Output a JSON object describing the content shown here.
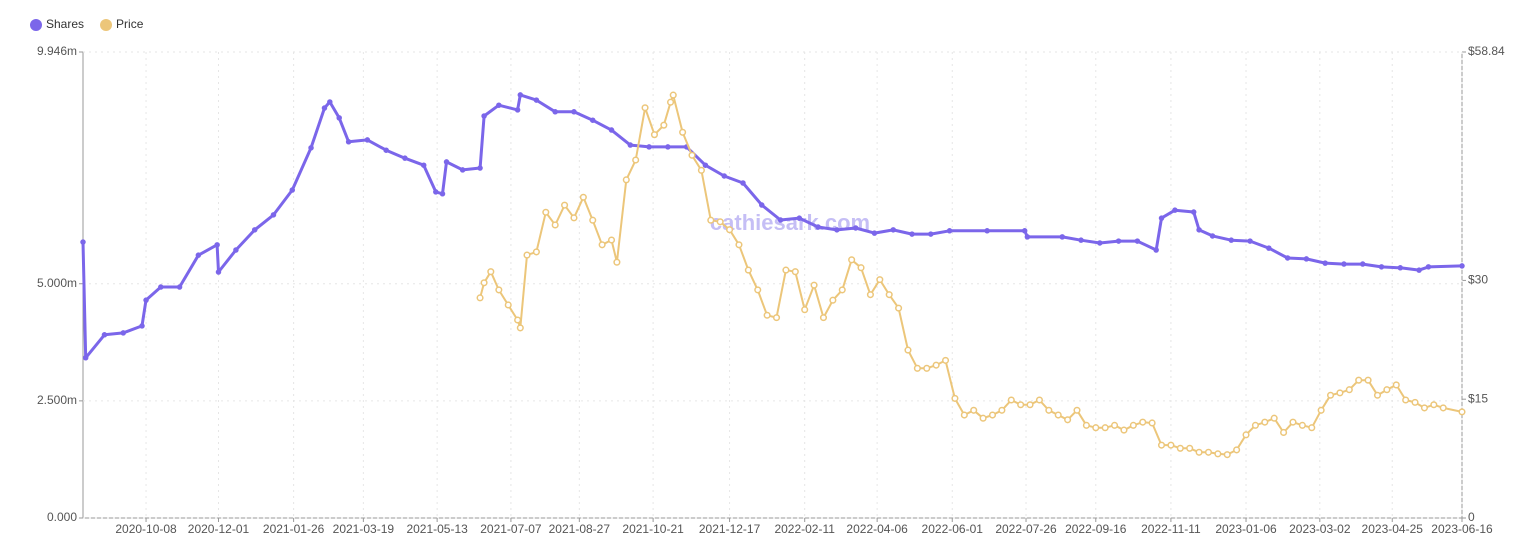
{
  "chart_data": {
    "type": "line",
    "watermark": "cathiesark.com",
    "legend": "top-left",
    "grid": true,
    "xlim": [
      "2020-08-22",
      "2023-06-16"
    ],
    "xticks": [
      "2020-10-08",
      "2020-12-01",
      "2021-01-26",
      "2021-03-19",
      "2021-05-13",
      "2021-07-07",
      "2021-08-27",
      "2021-10-21",
      "2021-12-17",
      "2022-02-11",
      "2022-04-06",
      "2022-06-01",
      "2022-07-26",
      "2022-09-16",
      "2022-11-11",
      "2023-01-06",
      "2023-03-02",
      "2023-04-25",
      "2023-06-16"
    ],
    "ylim": [
      0,
      9.946
    ],
    "yticks": [
      {
        "value": 0,
        "label": "0.000"
      },
      {
        "value": 2.5,
        "label": "2.500m"
      },
      {
        "value": 5,
        "label": "5.000m"
      },
      {
        "value": 9.946,
        "label": "9.946m"
      }
    ],
    "y2lim": [
      0,
      58.84
    ],
    "y2ticks": [
      0,
      {
        "value": 15,
        "label": "$15"
      },
      {
        "value": 30,
        "label": "$30"
      },
      {
        "value": 58.84,
        "label": "$58.84"
      }
    ],
    "series": [
      {
        "name": "Shares",
        "color": "#7b66ea",
        "x": [
          "2020-08-22",
          "2020-08-24",
          "2020-09-07",
          "2020-09-21",
          "2020-10-05",
          "2020-10-08",
          "2020-10-19",
          "2020-11-02",
          "2020-11-16",
          "2020-11-30",
          "2020-12-01",
          "2020-12-14",
          "2020-12-28",
          "2021-01-11",
          "2021-01-25",
          "2021-02-08",
          "2021-02-18",
          "2021-02-22",
          "2021-03-01",
          "2021-03-08",
          "2021-03-22",
          "2021-04-05",
          "2021-04-19",
          "2021-05-03",
          "2021-05-12",
          "2021-05-17",
          "2021-05-20",
          "2021-06-01",
          "2021-06-14",
          "2021-06-17",
          "2021-06-28",
          "2021-07-12",
          "2021-07-14",
          "2021-07-26",
          "2021-08-09",
          "2021-08-23",
          "2021-09-06",
          "2021-09-20",
          "2021-10-04",
          "2021-10-18",
          "2021-11-01",
          "2021-11-15",
          "2021-11-29",
          "2021-12-13",
          "2021-12-27",
          "2022-01-10",
          "2022-01-24",
          "2022-02-07",
          "2022-02-21",
          "2022-03-07",
          "2022-03-21",
          "2022-04-04",
          "2022-04-18",
          "2022-05-02",
          "2022-05-16",
          "2022-05-30",
          "2022-06-27",
          "2022-07-25",
          "2022-07-27",
          "2022-08-22",
          "2022-09-05",
          "2022-09-19",
          "2022-10-03",
          "2022-10-17",
          "2022-10-31",
          "2022-11-04",
          "2022-11-14",
          "2022-11-28",
          "2022-12-02",
          "2022-12-12",
          "2022-12-26",
          "2023-01-09",
          "2023-01-23",
          "2023-02-06",
          "2023-02-20",
          "2023-03-06",
          "2023-03-20",
          "2023-04-03",
          "2023-04-17",
          "2023-05-01",
          "2023-05-15",
          "2023-05-22",
          "2023-06-16"
        ],
        "values": [
          5.89,
          3.42,
          3.91,
          3.95,
          4.1,
          4.65,
          4.93,
          4.93,
          5.61,
          5.83,
          5.25,
          5.72,
          6.15,
          6.47,
          7.0,
          7.9,
          8.75,
          8.88,
          8.54,
          8.03,
          8.07,
          7.85,
          7.68,
          7.53,
          6.96,
          6.92,
          7.6,
          7.43,
          7.47,
          8.58,
          8.81,
          8.71,
          9.03,
          8.92,
          8.67,
          8.67,
          8.49,
          8.28,
          7.96,
          7.92,
          7.92,
          7.92,
          7.53,
          7.3,
          7.15,
          6.68,
          6.36,
          6.4,
          6.21,
          6.15,
          6.19,
          6.08,
          6.15,
          6.06,
          6.06,
          6.13,
          6.13,
          6.13,
          6.0,
          6.0,
          5.93,
          5.87,
          5.91,
          5.91,
          5.72,
          6.4,
          6.57,
          6.53,
          6.15,
          6.02,
          5.93,
          5.91,
          5.76,
          5.55,
          5.53,
          5.44,
          5.42,
          5.42,
          5.36,
          5.34,
          5.29,
          5.36,
          5.38
        ]
      },
      {
        "name": "Price",
        "color": "#ecc67a",
        "axis": "y2",
        "x": [
          "2021-06-14",
          "2021-06-17",
          "2021-06-22",
          "2021-06-28",
          "2021-07-05",
          "2021-07-12",
          "2021-07-14",
          "2021-07-19",
          "2021-07-26",
          "2021-08-02",
          "2021-08-09",
          "2021-08-16",
          "2021-08-23",
          "2021-08-30",
          "2021-09-06",
          "2021-09-13",
          "2021-09-20",
          "2021-09-24",
          "2021-10-01",
          "2021-10-08",
          "2021-10-15",
          "2021-10-22",
          "2021-10-29",
          "2021-11-03",
          "2021-11-05",
          "2021-11-12",
          "2021-11-19",
          "2021-11-26",
          "2021-12-03",
          "2021-12-10",
          "2021-12-17",
          "2021-12-24",
          "2021-12-31",
          "2022-01-07",
          "2022-01-14",
          "2022-01-21",
          "2022-01-28",
          "2022-02-04",
          "2022-02-11",
          "2022-02-18",
          "2022-02-25",
          "2022-03-04",
          "2022-03-11",
          "2022-03-18",
          "2022-03-25",
          "2022-04-01",
          "2022-04-08",
          "2022-04-15",
          "2022-04-22",
          "2022-04-29",
          "2022-05-06",
          "2022-05-13",
          "2022-05-20",
          "2022-05-27",
          "2022-06-03",
          "2022-06-10",
          "2022-06-17",
          "2022-06-24",
          "2022-07-01",
          "2022-07-08",
          "2022-07-15",
          "2022-07-22",
          "2022-07-29",
          "2022-08-05",
          "2022-08-12",
          "2022-08-19",
          "2022-08-26",
          "2022-09-02",
          "2022-09-09",
          "2022-09-16",
          "2022-09-23",
          "2022-09-30",
          "2022-10-07",
          "2022-10-14",
          "2022-10-21",
          "2022-10-28",
          "2022-11-04",
          "2022-11-11",
          "2022-11-18",
          "2022-11-25",
          "2022-12-02",
          "2022-12-09",
          "2022-12-16",
          "2022-12-23",
          "2022-12-30",
          "2023-01-06",
          "2023-01-13",
          "2023-01-20",
          "2023-01-27",
          "2023-02-03",
          "2023-02-10",
          "2023-02-17",
          "2023-02-24",
          "2023-03-03",
          "2023-03-10",
          "2023-03-17",
          "2023-03-24",
          "2023-03-31",
          "2023-04-07",
          "2023-04-14",
          "2023-04-21",
          "2023-04-28",
          "2023-05-05",
          "2023-05-12",
          "2023-05-19",
          "2023-05-26",
          "2023-06-02",
          "2023-06-16"
        ],
        "values": [
          27.8,
          29.7,
          31.1,
          28.8,
          26.9,
          25.0,
          24.0,
          33.2,
          33.6,
          38.6,
          37.0,
          39.5,
          37.9,
          40.5,
          37.6,
          34.5,
          35.1,
          32.3,
          42.7,
          45.2,
          51.8,
          48.4,
          49.6,
          52.5,
          53.4,
          48.7,
          45.8,
          43.9,
          37.6,
          37.4,
          36.4,
          34.5,
          31.3,
          28.8,
          25.6,
          25.3,
          31.3,
          31.1,
          26.3,
          29.4,
          25.3,
          27.5,
          28.8,
          32.6,
          31.6,
          28.2,
          30.1,
          28.2,
          26.5,
          21.2,
          18.9,
          18.9,
          19.3,
          19.9,
          15.1,
          13.0,
          13.6,
          12.6,
          13.0,
          13.6,
          14.9,
          14.3,
          14.3,
          14.9,
          13.6,
          13.0,
          12.4,
          13.6,
          11.7,
          11.4,
          11.4,
          11.7,
          11.1,
          11.7,
          12.1,
          12.0,
          9.2,
          9.2,
          8.8,
          8.8,
          8.3,
          8.3,
          8.1,
          8.0,
          8.6,
          10.5,
          11.7,
          12.1,
          12.6,
          10.8,
          12.1,
          11.7,
          11.4,
          13.6,
          15.5,
          15.8,
          16.2,
          17.4,
          17.4,
          15.5,
          16.2,
          16.8,
          14.9,
          14.6,
          13.9,
          14.3,
          13.9,
          13.4
        ]
      }
    ]
  }
}
